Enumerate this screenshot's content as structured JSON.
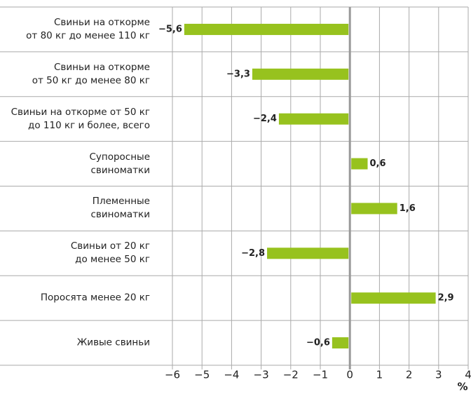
{
  "chart_data": {
    "type": "bar",
    "orientation": "horizontal",
    "categories": [
      "Свиньи на откорме\nот 80 кг до менее 110 кг",
      "Свиньи на откорме\nот 50 кг до менее 80 кг",
      "Свиньи на откорме от 50 кг\nдо 110 кг и более, всего",
      "Супоросные\nсвиноматки",
      "Племенные\nсвиноматки",
      "Свиньи от 20 кг\nдо менее 50 кг",
      "Поросята менее 20 кг",
      "Живые свиньи"
    ],
    "values": [
      -5.6,
      -3.3,
      -2.4,
      0.6,
      1.6,
      -2.8,
      2.9,
      -0.6
    ],
    "value_labels": [
      "−5,6",
      "−3,3",
      "−2,4",
      "0,6",
      "1,6",
      "−2,8",
      "2,9",
      "−0,6"
    ],
    "color": "#97c21e",
    "xlim": [
      -6,
      4
    ],
    "xticks": [
      {
        "value": -6,
        "label": "−6"
      },
      {
        "value": -5,
        "label": "−5"
      },
      {
        "value": -4,
        "label": "−4"
      },
      {
        "value": -3,
        "label": "−3"
      },
      {
        "value": -2,
        "label": "−2"
      },
      {
        "value": -1,
        "label": "−1"
      },
      0,
      1,
      2,
      3,
      4
    ],
    "xlabel": "%",
    "grid": true
  }
}
